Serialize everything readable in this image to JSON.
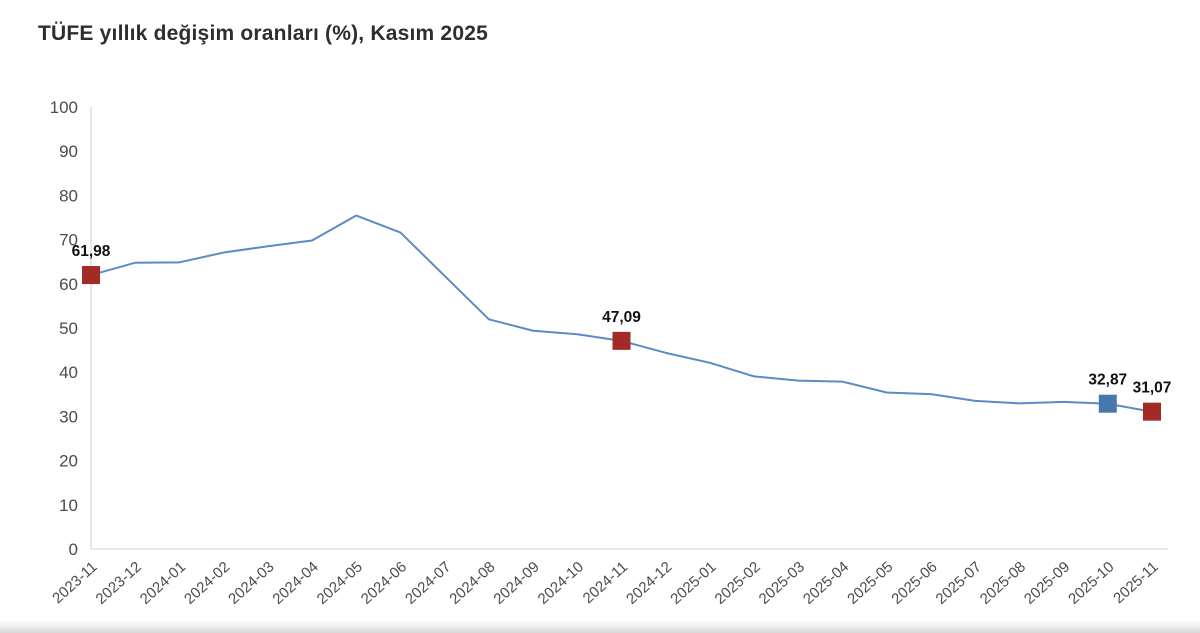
{
  "title": "TÜFE yıllık değişim oranları (%), Kasım 2025",
  "colors": {
    "line": "#5b8ac5",
    "marker_red": "#a32a25",
    "marker_blue": "#4678ae",
    "axis": "#d9d9d9",
    "tick_text": "#4c4c4c",
    "data_label_text": "#111111"
  },
  "chart_data": {
    "type": "line",
    "title": "TÜFE yıllık değişim oranları (%), Kasım 2025",
    "xlabel": "",
    "ylabel": "",
    "ylim": [
      0,
      100
    ],
    "yticks": [
      0,
      10,
      20,
      30,
      40,
      50,
      60,
      70,
      80,
      90,
      100
    ],
    "grid": false,
    "legend": "none",
    "categories": [
      "2023-11",
      "2023-12",
      "2024-01",
      "2024-02",
      "2024-03",
      "2024-04",
      "2024-05",
      "2024-06",
      "2024-07",
      "2024-08",
      "2024-09",
      "2024-10",
      "2024-11",
      "2024-12",
      "2025-01",
      "2025-02",
      "2025-03",
      "2025-04",
      "2025-05",
      "2025-06",
      "2025-07",
      "2025-08",
      "2025-09",
      "2025-10",
      "2025-11"
    ],
    "series": [
      {
        "name": "TÜFE yıllık değişim (%)",
        "values": [
          61.98,
          64.77,
          64.86,
          67.07,
          68.5,
          69.8,
          75.45,
          71.6,
          61.78,
          51.97,
          49.38,
          48.58,
          47.09,
          44.38,
          42.12,
          39.05,
          38.1,
          37.86,
          35.41,
          35.05,
          33.52,
          32.95,
          33.29,
          32.87,
          31.07
        ]
      }
    ],
    "highlighted_points": [
      {
        "category": "2023-11",
        "index": 0,
        "value": 61.98,
        "label": "61,98",
        "marker": "red-square"
      },
      {
        "category": "2024-11",
        "index": 12,
        "value": 47.09,
        "label": "47,09",
        "marker": "red-square"
      },
      {
        "category": "2025-10",
        "index": 23,
        "value": 32.87,
        "label": "32,87",
        "marker": "blue-square"
      },
      {
        "category": "2025-11",
        "index": 24,
        "value": 31.07,
        "label": "31,07",
        "marker": "red-square"
      }
    ]
  }
}
